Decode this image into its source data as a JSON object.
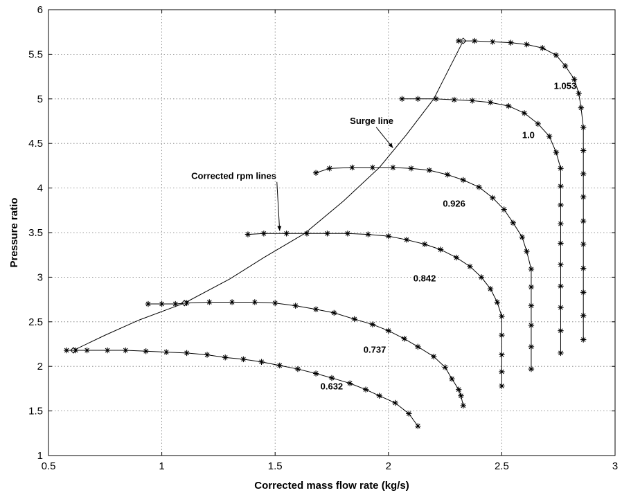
{
  "chart_data": {
    "type": "line",
    "title": "",
    "xlabel": "Corrected mass flow rate (kg/s)",
    "ylabel": "Pressure ratio",
    "xlim": [
      0.5,
      3
    ],
    "ylim": [
      1,
      6
    ],
    "xticks": [
      0.5,
      1,
      1.5,
      2,
      2.5,
      3
    ],
    "yticks": [
      1,
      1.5,
      2,
      2.5,
      3,
      3.5,
      4,
      4.5,
      5,
      5.5,
      6
    ],
    "xtick_labels": [
      "0.5",
      "1",
      "1.5",
      "2",
      "2.5",
      "3"
    ],
    "ytick_labels": [
      "1",
      "1.5",
      "2",
      "2.5",
      "3",
      "3.5",
      "4",
      "4.5",
      "5",
      "5.5",
      "6"
    ],
    "grid": true,
    "series": [
      {
        "name": "0.632",
        "points": [
          [
            0.58,
            2.18
          ],
          [
            0.62,
            2.18
          ],
          [
            0.67,
            2.18
          ],
          [
            0.76,
            2.18
          ],
          [
            0.84,
            2.18
          ],
          [
            0.93,
            2.17
          ],
          [
            1.02,
            2.16
          ],
          [
            1.11,
            2.15
          ],
          [
            1.2,
            2.13
          ],
          [
            1.28,
            2.1
          ],
          [
            1.36,
            2.08
          ],
          [
            1.44,
            2.05
          ],
          [
            1.52,
            2.01
          ],
          [
            1.6,
            1.97
          ],
          [
            1.68,
            1.92
          ],
          [
            1.75,
            1.87
          ],
          [
            1.83,
            1.81
          ],
          [
            1.9,
            1.74
          ],
          [
            1.96,
            1.67
          ],
          [
            2.03,
            1.59
          ],
          [
            2.09,
            1.47
          ],
          [
            2.13,
            1.33
          ]
        ]
      },
      {
        "name": "0.737",
        "points": [
          [
            0.94,
            2.7
          ],
          [
            1.0,
            2.7
          ],
          [
            1.06,
            2.7
          ],
          [
            1.11,
            2.71
          ],
          [
            1.21,
            2.72
          ],
          [
            1.31,
            2.72
          ],
          [
            1.41,
            2.72
          ],
          [
            1.5,
            2.71
          ],
          [
            1.59,
            2.68
          ],
          [
            1.68,
            2.64
          ],
          [
            1.76,
            2.6
          ],
          [
            1.85,
            2.53
          ],
          [
            1.93,
            2.47
          ],
          [
            2.0,
            2.4
          ],
          [
            2.07,
            2.31
          ],
          [
            2.13,
            2.22
          ],
          [
            2.2,
            2.11
          ],
          [
            2.25,
            1.99
          ],
          [
            2.28,
            1.86
          ],
          [
            2.31,
            1.74
          ],
          [
            2.32,
            1.67
          ],
          [
            2.33,
            1.56
          ]
        ]
      },
      {
        "name": "0.842",
        "points": [
          [
            1.38,
            3.48
          ],
          [
            1.45,
            3.49
          ],
          [
            1.55,
            3.49
          ],
          [
            1.64,
            3.49
          ],
          [
            1.73,
            3.49
          ],
          [
            1.82,
            3.49
          ],
          [
            1.91,
            3.48
          ],
          [
            2.0,
            3.46
          ],
          [
            2.08,
            3.42
          ],
          [
            2.16,
            3.37
          ],
          [
            2.23,
            3.31
          ],
          [
            2.3,
            3.22
          ],
          [
            2.36,
            3.12
          ],
          [
            2.41,
            3.0
          ],
          [
            2.45,
            2.87
          ],
          [
            2.48,
            2.72
          ],
          [
            2.5,
            2.56
          ],
          [
            2.5,
            2.35
          ],
          [
            2.5,
            2.13
          ],
          [
            2.5,
            1.94
          ],
          [
            2.5,
            1.78
          ]
        ]
      },
      {
        "name": "0.926",
        "points": [
          [
            1.68,
            4.17
          ],
          [
            1.74,
            4.22
          ],
          [
            1.84,
            4.23
          ],
          [
            1.93,
            4.23
          ],
          [
            2.02,
            4.23
          ],
          [
            2.1,
            4.22
          ],
          [
            2.18,
            4.2
          ],
          [
            2.26,
            4.15
          ],
          [
            2.33,
            4.09
          ],
          [
            2.4,
            4.01
          ],
          [
            2.46,
            3.89
          ],
          [
            2.51,
            3.76
          ],
          [
            2.55,
            3.61
          ],
          [
            2.59,
            3.45
          ],
          [
            2.61,
            3.29
          ],
          [
            2.63,
            3.09
          ],
          [
            2.63,
            2.89
          ],
          [
            2.63,
            2.68
          ],
          [
            2.63,
            2.46
          ],
          [
            2.63,
            2.22
          ],
          [
            2.63,
            1.97
          ]
        ]
      },
      {
        "name": "1.0",
        "points": [
          [
            2.06,
            5.0
          ],
          [
            2.13,
            5.0
          ],
          [
            2.21,
            5.0
          ],
          [
            2.29,
            4.99
          ],
          [
            2.37,
            4.98
          ],
          [
            2.45,
            4.96
          ],
          [
            2.53,
            4.92
          ],
          [
            2.6,
            4.84
          ],
          [
            2.66,
            4.72
          ],
          [
            2.71,
            4.58
          ],
          [
            2.74,
            4.4
          ],
          [
            2.76,
            4.22
          ],
          [
            2.76,
            4.02
          ],
          [
            2.76,
            3.81
          ],
          [
            2.76,
            3.6
          ],
          [
            2.76,
            3.38
          ],
          [
            2.76,
            3.14
          ],
          [
            2.76,
            2.9
          ],
          [
            2.76,
            2.66
          ],
          [
            2.76,
            2.4
          ],
          [
            2.76,
            2.15
          ]
        ]
      },
      {
        "name": "1.053",
        "points": [
          [
            2.31,
            5.65
          ],
          [
            2.38,
            5.65
          ],
          [
            2.46,
            5.64
          ],
          [
            2.54,
            5.63
          ],
          [
            2.61,
            5.61
          ],
          [
            2.68,
            5.57
          ],
          [
            2.74,
            5.49
          ],
          [
            2.78,
            5.37
          ],
          [
            2.82,
            5.22
          ],
          [
            2.84,
            5.06
          ],
          [
            2.85,
            4.9
          ],
          [
            2.86,
            4.68
          ],
          [
            2.86,
            4.42
          ],
          [
            2.86,
            4.16
          ],
          [
            2.86,
            3.9
          ],
          [
            2.86,
            3.63
          ],
          [
            2.86,
            3.37
          ],
          [
            2.86,
            3.1
          ],
          [
            2.86,
            2.83
          ],
          [
            2.86,
            2.57
          ],
          [
            2.86,
            2.3
          ]
        ]
      }
    ],
    "surge_line": {
      "name": "Surge line",
      "points": [
        [
          0.61,
          2.18
        ],
        [
          0.75,
          2.35
        ],
        [
          0.9,
          2.52
        ],
        [
          1.1,
          2.71
        ],
        [
          1.3,
          2.98
        ],
        [
          1.45,
          3.22
        ],
        [
          1.63,
          3.49
        ],
        [
          1.8,
          3.85
        ],
        [
          1.96,
          4.23
        ],
        [
          2.08,
          4.6
        ],
        [
          2.2,
          5.0
        ],
        [
          2.33,
          5.65
        ]
      ],
      "diamond_markers": [
        [
          0.61,
          2.18
        ],
        [
          1.1,
          2.71
        ],
        [
          2.33,
          5.65
        ]
      ]
    },
    "speed_labels": [
      {
        "text": "0.632",
        "x": 1.7,
        "y": 1.78
      },
      {
        "text": "0.737",
        "x": 1.89,
        "y": 2.19
      },
      {
        "text": "0.842",
        "x": 2.11,
        "y": 2.99
      },
      {
        "text": "0.926",
        "x": 2.24,
        "y": 3.83
      },
      {
        "text": "1.0",
        "x": 2.59,
        "y": 4.6
      },
      {
        "text": "1.053",
        "x": 2.73,
        "y": 5.15
      }
    ],
    "annotations": [
      {
        "text": "Surge line",
        "x": 1.83,
        "y": 4.72,
        "arrow_to": [
          2.02,
          4.45
        ]
      },
      {
        "text": "Corrected rpm lines",
        "x": 1.13,
        "y": 4.1,
        "arrow_to": [
          1.52,
          3.52
        ]
      }
    ]
  }
}
